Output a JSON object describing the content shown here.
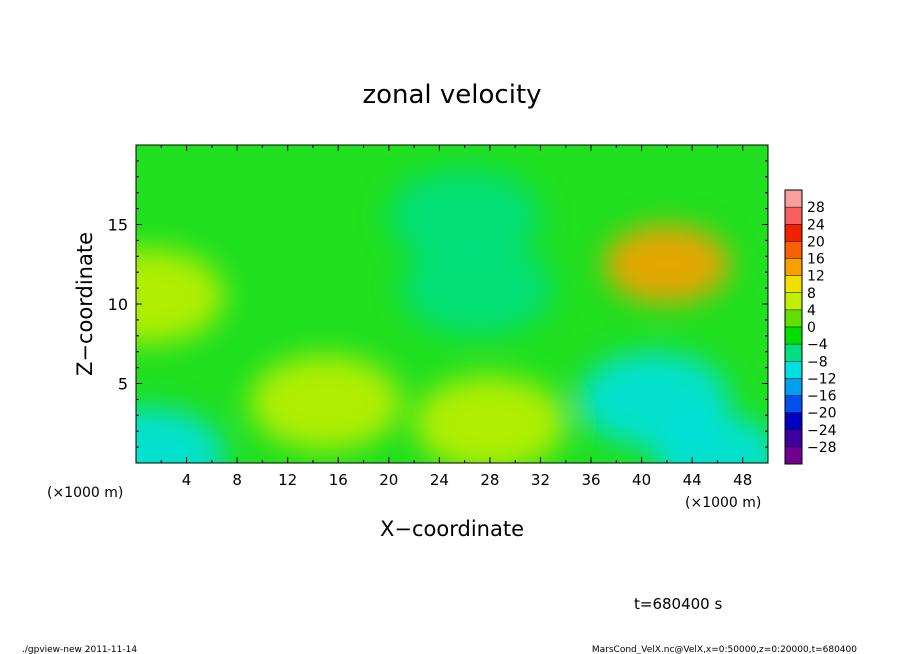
{
  "chart_data": {
    "type": "heatmap",
    "title": "zonal velocity",
    "xlabel": "X−coordinate",
    "ylabel": "Z−coordinate",
    "x_unit": "(×1000 m)",
    "y_unit": "(×1000 m)",
    "xlim": [
      0,
      50
    ],
    "ylim": [
      0,
      20
    ],
    "x_ticks": [
      4,
      8,
      12,
      16,
      20,
      24,
      28,
      32,
      36,
      40,
      44,
      48
    ],
    "y_ticks": [
      5,
      10,
      15
    ],
    "time_label": "t=680400 s",
    "colorbar": {
      "levels": [
        28,
        24,
        20,
        16,
        12,
        8,
        4,
        0,
        -4,
        -8,
        -12,
        -16,
        -20,
        -24,
        -28
      ],
      "labels": [
        "28",
        "24",
        "20",
        "16",
        "12",
        "8",
        "4",
        "0",
        "−4",
        "−8",
        "−12",
        "−16",
        "−20",
        "−24",
        "−28"
      ],
      "colors": [
        "#f8a0a0",
        "#f86060",
        "#f02000",
        "#f86000",
        "#f8a000",
        "#f0e000",
        "#c0f000",
        "#60e000",
        "#00e000",
        "#00e080",
        "#00e0e0",
        "#00a0f0",
        "#0050f0",
        "#0000c0",
        "#4000a0",
        "#700090"
      ]
    },
    "field_features": [
      {
        "x": 42,
        "z": 12.5,
        "value": 12
      },
      {
        "x": 1,
        "z": 10.5,
        "value": 7
      },
      {
        "x": 28,
        "z": 2.5,
        "value": 6
      },
      {
        "x": 15,
        "z": 3.8,
        "value": 4
      },
      {
        "x": 27,
        "z": 11,
        "value": -8
      },
      {
        "x": 26,
        "z": 15.5,
        "value": -6
      },
      {
        "x": 41,
        "z": 4,
        "value": -9
      },
      {
        "x": 46,
        "z": 0.5,
        "value": -10
      },
      {
        "x": 1,
        "z": 0.5,
        "value": -9
      }
    ]
  },
  "footer": {
    "left": "./gpview-new  2011-11-14",
    "right": "MarsCond_VelX.nc@VelX,x=0:50000,z=0:20000,t=680400"
  }
}
